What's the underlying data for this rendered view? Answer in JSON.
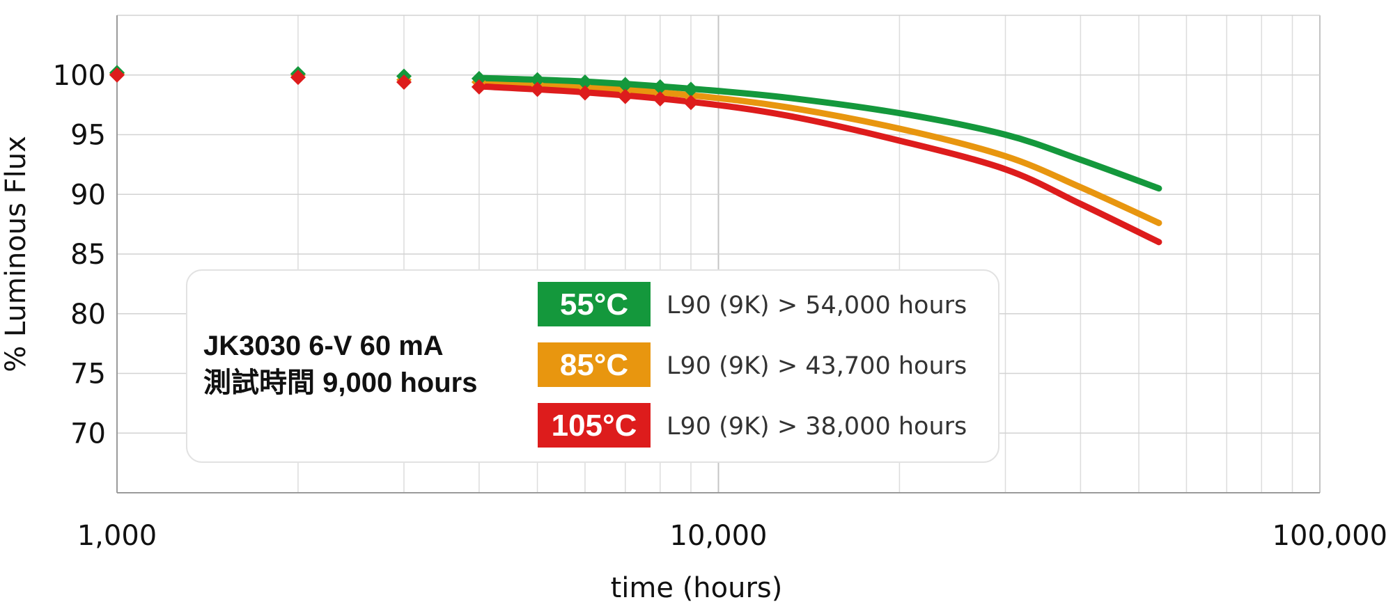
{
  "chart_data": {
    "type": "line",
    "xlabel": "time (hours)",
    "ylabel": "% Luminous Flux",
    "x_scale": "log",
    "xlim": [
      1000,
      100000
    ],
    "ylim": [
      65,
      105
    ],
    "x_ticks": [
      {
        "value": 1000,
        "label": "1,000"
      },
      {
        "value": 10000,
        "label": "10,000"
      },
      {
        "value": 100000,
        "label": "100,000"
      }
    ],
    "y_ticks": [
      {
        "value": 100,
        "label": "100"
      },
      {
        "value": 95,
        "label": "95"
      },
      {
        "value": 90,
        "label": "90"
      },
      {
        "value": 85,
        "label": "85"
      },
      {
        "value": 80,
        "label": "80"
      },
      {
        "value": 75,
        "label": "75"
      },
      {
        "value": 70,
        "label": "70"
      }
    ],
    "grid": true,
    "legend_position": "center-left",
    "legend": {
      "title_line1": "JK3030 6-V 60 mA",
      "title_line2": "測試時間 9,000 hours"
    },
    "series": [
      {
        "name": "55°C",
        "description": "L90 (9K) > 54,000 hours",
        "color": "#14983c",
        "points": [
          {
            "x": 1000,
            "y": 100.2
          },
          {
            "x": 2000,
            "y": 100.1
          },
          {
            "x": 3000,
            "y": 99.9
          },
          {
            "x": 4000,
            "y": 99.7
          },
          {
            "x": 5000,
            "y": 99.6
          },
          {
            "x": 6000,
            "y": 99.4
          },
          {
            "x": 7000,
            "y": 99.2
          },
          {
            "x": 8000,
            "y": 99.0
          },
          {
            "x": 9000,
            "y": 98.8
          }
        ],
        "fit": [
          {
            "x": 4000,
            "y": 99.75
          },
          {
            "x": 6000,
            "y": 99.45
          },
          {
            "x": 9000,
            "y": 98.85
          },
          {
            "x": 13000,
            "y": 98.1
          },
          {
            "x": 20000,
            "y": 96.8
          },
          {
            "x": 30000,
            "y": 95.0
          },
          {
            "x": 40000,
            "y": 92.9
          },
          {
            "x": 54000,
            "y": 90.5
          }
        ]
      },
      {
        "name": "85°C",
        "description": "L90 (9K) > 43,700 hours",
        "color": "#e8960f",
        "points": [
          {
            "x": 1000,
            "y": 100.1
          },
          {
            "x": 2000,
            "y": 100.0
          },
          {
            "x": 3000,
            "y": 99.6
          },
          {
            "x": 4000,
            "y": 99.4
          },
          {
            "x": 5000,
            "y": 99.2
          },
          {
            "x": 6000,
            "y": 99.0
          },
          {
            "x": 7000,
            "y": 98.7
          },
          {
            "x": 8000,
            "y": 98.5
          },
          {
            "x": 9000,
            "y": 98.2
          }
        ],
        "fit": [
          {
            "x": 4000,
            "y": 99.45
          },
          {
            "x": 6000,
            "y": 99.0
          },
          {
            "x": 9000,
            "y": 98.3
          },
          {
            "x": 13000,
            "y": 97.3
          },
          {
            "x": 20000,
            "y": 95.5
          },
          {
            "x": 30000,
            "y": 93.2
          },
          {
            "x": 40000,
            "y": 90.6
          },
          {
            "x": 54000,
            "y": 87.6
          }
        ]
      },
      {
        "name": "105°C",
        "description": "L90 (9K) > 38,000 hours",
        "color": "#dd1c1c",
        "points": [
          {
            "x": 1000,
            "y": 100.0
          },
          {
            "x": 2000,
            "y": 99.8
          },
          {
            "x": 3000,
            "y": 99.4
          },
          {
            "x": 4000,
            "y": 99.0
          },
          {
            "x": 5000,
            "y": 98.8
          },
          {
            "x": 6000,
            "y": 98.5
          },
          {
            "x": 7000,
            "y": 98.2
          },
          {
            "x": 8000,
            "y": 98.0
          },
          {
            "x": 9000,
            "y": 97.7
          }
        ],
        "fit": [
          {
            "x": 4000,
            "y": 99.05
          },
          {
            "x": 6000,
            "y": 98.55
          },
          {
            "x": 9000,
            "y": 97.75
          },
          {
            "x": 13000,
            "y": 96.6
          },
          {
            "x": 20000,
            "y": 94.5
          },
          {
            "x": 30000,
            "y": 92.1
          },
          {
            "x": 40000,
            "y": 89.2
          },
          {
            "x": 54000,
            "y": 86.0
          }
        ]
      }
    ]
  }
}
